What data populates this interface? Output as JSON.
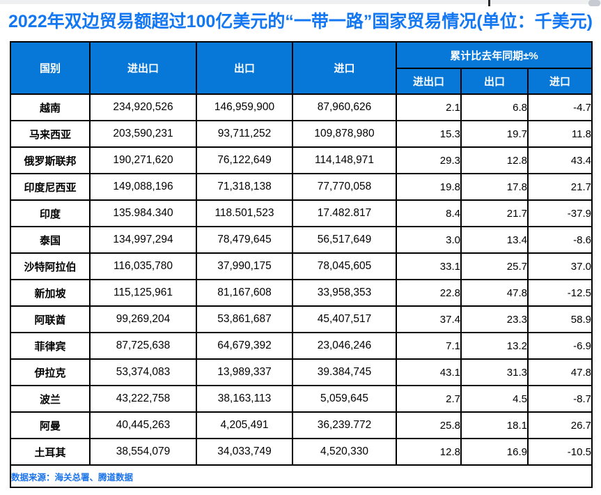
{
  "title": "2022年双边贸易额超过100亿美元的“一带一路”国家贸易情况(单位：千美元)",
  "colors": {
    "title_text": "#1277f0",
    "header_bg": "#0878d8",
    "header_text": "#ffffff",
    "table_border": "#000000",
    "source_text": "#1a73e8",
    "top_strip": "#eef0f2"
  },
  "chart_data": {
    "type": "table",
    "title": "2022年双边贸易额超过100亿美元的“一带一路”国家贸易情况",
    "unit": "千美元",
    "columns": [
      "国别",
      "进出口",
      "出口",
      "进口",
      "进出口",
      "出口",
      "进口"
    ],
    "group_header": "累计比去年同期±%",
    "rows": [
      {
        "country": "越南",
        "total": "234,920,526",
        "export": "146,959,900",
        "import": "87,960,626",
        "yoy_total": "2.1",
        "yoy_export": "6.8",
        "yoy_import": "-4.7"
      },
      {
        "country": "马来西亚",
        "total": "203,590,231",
        "export": "93,711,252",
        "import": "109,878,980",
        "yoy_total": "15.3",
        "yoy_export": "19.7",
        "yoy_import": "11.8"
      },
      {
        "country": "俄罗斯联邦",
        "total": "190,271,620",
        "export": "76,122,649",
        "import": "114,148,971",
        "yoy_total": "29.3",
        "yoy_export": "12.8",
        "yoy_import": "43.4"
      },
      {
        "country": "印度尼西亚",
        "total": "149,088,196",
        "export": "71,318,138",
        "import": "77,770,058",
        "yoy_total": "19.8",
        "yoy_export": "17.8",
        "yoy_import": "21.7"
      },
      {
        "country": "印度",
        "total": "135.984.340",
        "export": "118.501,523",
        "import": "17.482.817",
        "yoy_total": "8.4",
        "yoy_export": "21.7",
        "yoy_import": "-37.9"
      },
      {
        "country": "泰国",
        "total": "134,997,294",
        "export": "78,479,645",
        "import": "56,517,649",
        "yoy_total": "3.0",
        "yoy_export": "13.4",
        "yoy_import": "-8.6"
      },
      {
        "country": "沙特阿拉伯",
        "total": "116,035,780",
        "export": "37,990,175",
        "import": "78,045,605",
        "yoy_total": "33.1",
        "yoy_export": "25.7",
        "yoy_import": "37.0"
      },
      {
        "country": "新加坡",
        "total": "115,125,961",
        "export": "81,167,608",
        "import": "33,958,353",
        "yoy_total": "22.8",
        "yoy_export": "47.8",
        "yoy_import": "-12.5"
      },
      {
        "country": "阿联酋",
        "total": "99,269,204",
        "export": "53,861,687",
        "import": "45,407,517",
        "yoy_total": "37.4",
        "yoy_export": "23.3",
        "yoy_import": "58.9"
      },
      {
        "country": "菲律宾",
        "total": "87,725,638",
        "export": "64,679,392",
        "import": "23,046,246",
        "yoy_total": "7.1",
        "yoy_export": "13.2",
        "yoy_import": "-6.9"
      },
      {
        "country": "伊拉克",
        "total": "53,374,083",
        "export": "13,989,337",
        "import": "39.384,745",
        "yoy_total": "43.1",
        "yoy_export": "31.3",
        "yoy_import": "47.8"
      },
      {
        "country": "波兰",
        "total": "43,222,758",
        "export": "38,163,113",
        "import": "5,059,645",
        "yoy_total": "2.7",
        "yoy_export": "4.5",
        "yoy_import": "-8.7"
      },
      {
        "country": "阿曼",
        "total": "40,445,263",
        "export": "4,205,491",
        "import": "36,239.772",
        "yoy_total": "25.8",
        "yoy_export": "18.1",
        "yoy_import": "26.7"
      },
      {
        "country": "土耳其",
        "total": "38,554,079",
        "export": "34,033,749",
        "import": "4,520,330",
        "yoy_total": "12.8",
        "yoy_export": "16.9",
        "yoy_import": "-10.5"
      }
    ]
  },
  "footer": {
    "source": "数据来源：海关总署、腾道数据"
  }
}
